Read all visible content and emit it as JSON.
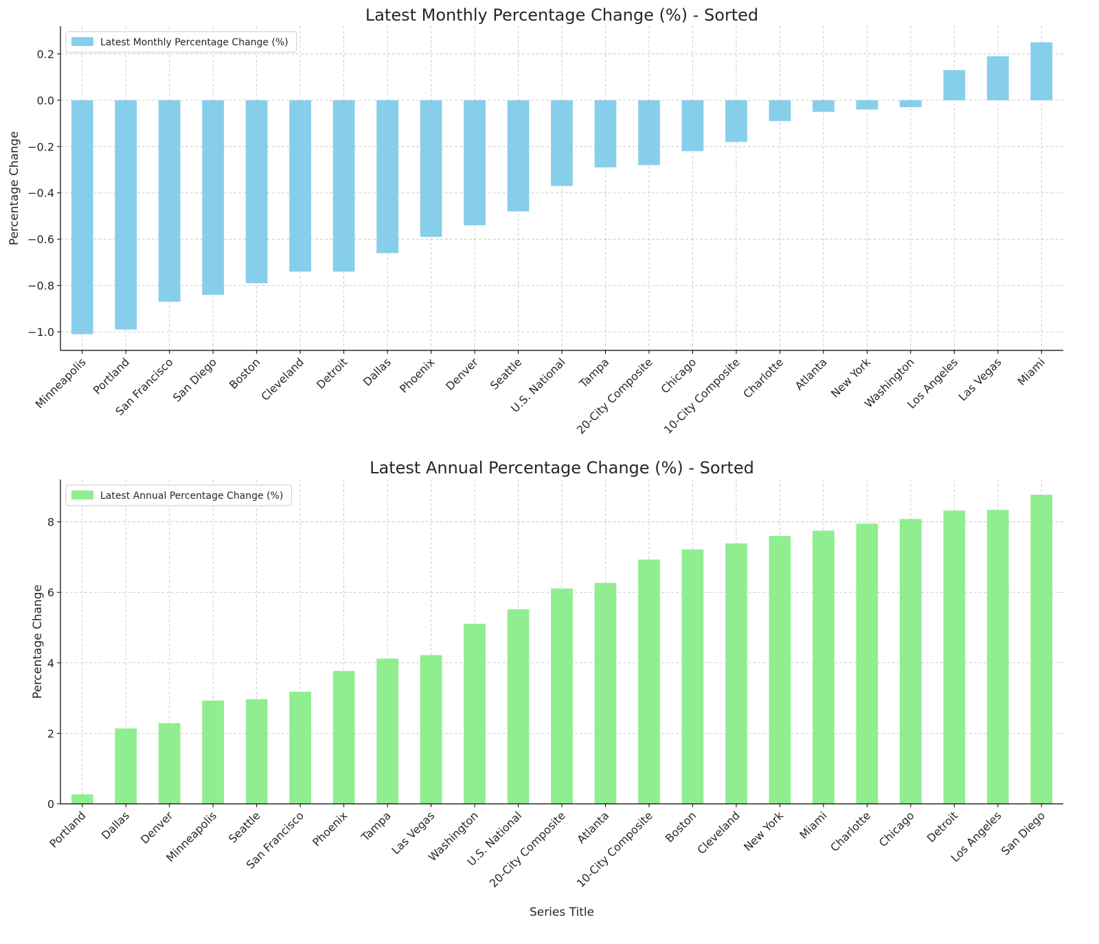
{
  "chart_data": [
    {
      "type": "bar",
      "title": "Latest Monthly Percentage Change (%) - Sorted",
      "xlabel": "",
      "ylabel": "Percentage Change",
      "legend": "top-left",
      "grid": true,
      "color": "#87CEEB",
      "ylim": [
        -1.08,
        0.32
      ],
      "yticks": [
        "−1.0",
        "−0.8",
        "−0.6",
        "−0.4",
        "−0.2",
        "0.0",
        "0.2"
      ],
      "ytick_values": [
        -1.0,
        -0.8,
        -0.6,
        -0.4,
        -0.2,
        0.0,
        0.2
      ],
      "categories": [
        "Minneapolis",
        "Portland",
        "San Francisco",
        "San Diego",
        "Boston",
        "Cleveland",
        "Detroit",
        "Dallas",
        "Phoenix",
        "Denver",
        "Seattle",
        "U.S. National",
        "Tampa",
        "20-City Composite",
        "Chicago",
        "10-City Composite",
        "Charlotte",
        "Atlanta",
        "New York",
        "Washington",
        "Los Angeles",
        "Las Vegas",
        "Miami"
      ],
      "series": [
        {
          "name": "Latest Monthly Percentage Change (%)",
          "values": [
            -1.01,
            -0.99,
            -0.87,
            -0.84,
            -0.79,
            -0.74,
            -0.74,
            -0.66,
            -0.59,
            -0.54,
            -0.48,
            -0.37,
            -0.29,
            -0.28,
            -0.22,
            -0.18,
            -0.09,
            -0.05,
            -0.04,
            -0.03,
            0.13,
            0.19,
            0.25
          ]
        }
      ]
    },
    {
      "type": "bar",
      "title": "Latest Annual Percentage Change (%) - Sorted",
      "xlabel": "Series Title",
      "ylabel": "Percentage Change",
      "legend": "top-left",
      "grid": true,
      "color": "#90EE90",
      "ylim": [
        0,
        9.2
      ],
      "yticks": [
        "0",
        "2",
        "4",
        "6",
        "8"
      ],
      "ytick_values": [
        0,
        2,
        4,
        6,
        8
      ],
      "categories": [
        "Portland",
        "Dallas",
        "Denver",
        "Minneapolis",
        "Seattle",
        "San Francisco",
        "Phoenix",
        "Tampa",
        "Las Vegas",
        "Washington",
        "U.S. National",
        "20-City Composite",
        "Atlanta",
        "10-City Composite",
        "Boston",
        "Cleveland",
        "New York",
        "Miami",
        "Charlotte",
        "Chicago",
        "Detroit",
        "Los Angeles",
        "San Diego"
      ],
      "series": [
        {
          "name": "Latest Annual Percentage Change (%)",
          "values": [
            0.27,
            2.14,
            2.29,
            2.93,
            2.97,
            3.18,
            3.77,
            4.12,
            4.22,
            5.11,
            5.52,
            6.11,
            6.27,
            6.93,
            7.22,
            7.39,
            7.6,
            7.75,
            7.95,
            8.08,
            8.32,
            8.34,
            8.77
          ]
        }
      ]
    }
  ]
}
